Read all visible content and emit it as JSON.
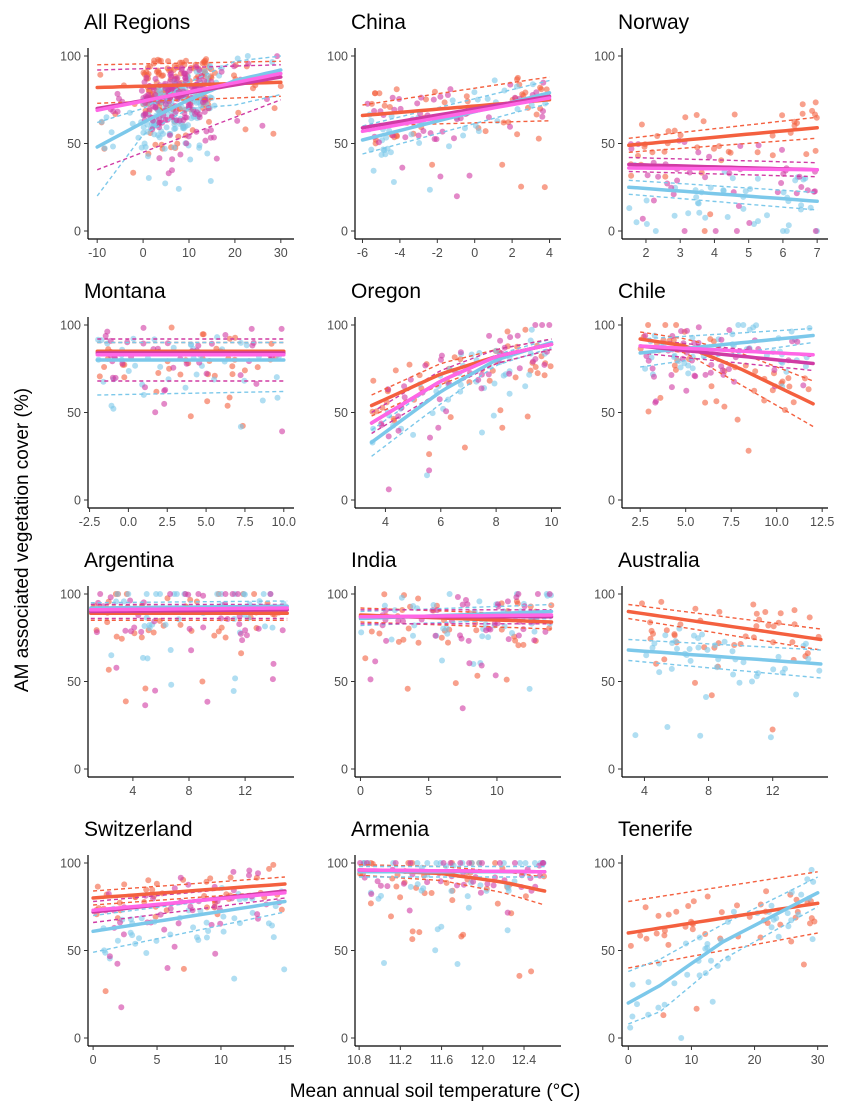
{
  "figure": {
    "xlabel": "Mean annual soil temperature (°C)",
    "ylabel": "AM associated vegetation cover (%)"
  },
  "colors": {
    "red": "#f4603f",
    "blue": "#7cc8ea",
    "magenta": "#d03ba4",
    "pink": "#ff66e6"
  },
  "chart_data": [
    {
      "type": "scatter",
      "title": "All Regions",
      "xlim": [
        -12,
        32
      ],
      "ylim": [
        0,
        100
      ],
      "xticks": [
        -10,
        0,
        10,
        20,
        30
      ],
      "xtick_labels": [
        "-10",
        "0",
        "10",
        "20",
        "30"
      ],
      "yticks": [
        0,
        50,
        100
      ],
      "trends": [
        {
          "color": "red",
          "x": [
            -10,
            30
          ],
          "y": [
            82,
            85
          ],
          "ci": [
            [
              73,
              77
            ],
            [
              95,
              97
            ]
          ]
        },
        {
          "color": "blue",
          "x": [
            -10,
            0,
            10,
            20,
            30
          ],
          "y": [
            48,
            62,
            75,
            86,
            92
          ],
          "ci": [
            [
              20,
              55,
              70,
              72,
              78
            ],
            [
              62,
              70,
              85,
              97,
              100
            ]
          ]
        },
        {
          "color": "magenta",
          "x": [
            -10,
            30
          ],
          "y": [
            70,
            88
          ],
          "ci": [
            [
              35,
              75
            ],
            [
              92,
              95
            ]
          ]
        },
        {
          "color": "pink",
          "x": [
            -10,
            30
          ],
          "y": [
            69,
            90
          ]
        }
      ]
    },
    {
      "type": "scatter",
      "title": "China",
      "xlim": [
        -6.4,
        4.4
      ],
      "ylim": [
        0,
        100
      ],
      "xticks": [
        -6,
        -4,
        -2,
        0,
        2,
        4
      ],
      "xtick_labels": [
        "-6",
        "-4",
        "-2",
        "0",
        "2",
        "4"
      ],
      "yticks": [
        0,
        50,
        100
      ],
      "trends": [
        {
          "color": "red",
          "x": [
            -6,
            4
          ],
          "y": [
            66,
            75
          ],
          "ci": [
            [
              60,
              63
            ],
            [
              72,
              88
            ]
          ]
        },
        {
          "color": "blue",
          "x": [
            -6,
            4
          ],
          "y": [
            52,
            79
          ],
          "ci": [
            [
              44,
              73
            ],
            [
              60,
              86
            ]
          ]
        },
        {
          "color": "magenta",
          "x": [
            -6,
            4
          ],
          "y": [
            59,
            77
          ]
        },
        {
          "color": "pink",
          "x": [
            -6,
            4
          ],
          "y": [
            57,
            76
          ]
        }
      ]
    },
    {
      "type": "scatter",
      "title": "Norway",
      "xlim": [
        1.3,
        7.2
      ],
      "ylim": [
        0,
        100
      ],
      "xticks": [
        2,
        3,
        4,
        5,
        6,
        7
      ],
      "xtick_labels": [
        "2",
        "3",
        "4",
        "5",
        "6",
        "7"
      ],
      "yticks": [
        0,
        50,
        100
      ],
      "trends": [
        {
          "color": "red",
          "x": [
            1.5,
            7
          ],
          "y": [
            49,
            59
          ],
          "ci": [
            [
              45,
              53
            ],
            [
              53,
              65
            ]
          ]
        },
        {
          "color": "blue",
          "x": [
            1.5,
            7
          ],
          "y": [
            25,
            17
          ],
          "ci": [
            [
              21,
              12
            ],
            [
              29,
              22
            ]
          ]
        },
        {
          "color": "magenta",
          "x": [
            1.5,
            7
          ],
          "y": [
            38,
            35
          ],
          "ci": [
            [
              34,
              31
            ],
            [
              42,
              39
            ]
          ]
        },
        {
          "color": "pink",
          "x": [
            1.5,
            7
          ],
          "y": [
            36,
            35
          ]
        }
      ]
    },
    {
      "type": "scatter",
      "title": "Montana",
      "xlim": [
        -2.6,
        10.4
      ],
      "ylim": [
        0,
        100
      ],
      "xticks": [
        -2.5,
        0,
        2.5,
        5,
        7.5,
        10
      ],
      "xtick_labels": [
        "-2.5",
        "0.0",
        "2.5",
        "5.0",
        "7.5",
        "10.0"
      ],
      "yticks": [
        0,
        50,
        100
      ],
      "trends": [
        {
          "color": "red",
          "x": [
            -2,
            10
          ],
          "y": [
            85,
            85
          ],
          "ci": [
            [
              80,
              80
            ],
            [
              90,
              90
            ]
          ]
        },
        {
          "color": "blue",
          "x": [
            -2,
            10
          ],
          "y": [
            80,
            80
          ],
          "ci": [
            [
              60,
              62
            ],
            [
              90,
              90
            ]
          ]
        },
        {
          "color": "magenta",
          "x": [
            -2,
            10
          ],
          "y": [
            84,
            84
          ],
          "ci": [
            [
              68,
              68
            ],
            [
              92,
              92
            ]
          ]
        },
        {
          "color": "pink",
          "x": [
            -2,
            10
          ],
          "y": [
            83,
            83
          ]
        }
      ]
    },
    {
      "type": "scatter",
      "title": "Oregon",
      "xlim": [
        2.9,
        10.2
      ],
      "ylim": [
        0,
        100
      ],
      "xticks": [
        4,
        6,
        8,
        10
      ],
      "xtick_labels": [
        "4",
        "6",
        "8",
        "10"
      ],
      "yticks": [
        0,
        50,
        100
      ],
      "trends": [
        {
          "color": "red",
          "x": [
            3.5,
            6,
            8,
            10
          ],
          "y": [
            54,
            72,
            82,
            89
          ],
          "ci": [
            [
              48,
              66,
              78,
              86
            ],
            [
              60,
              78,
              86,
              92
            ]
          ]
        },
        {
          "color": "blue",
          "x": [
            3.5,
            6,
            8,
            10
          ],
          "y": [
            33,
            62,
            80,
            90
          ],
          "ci": [
            [
              25,
              55,
              77,
              87
            ],
            [
              40,
              68,
              83,
              92
            ]
          ]
        },
        {
          "color": "magenta",
          "x": [
            3.5,
            6,
            8,
            10
          ],
          "y": [
            44,
            68,
            82,
            89
          ],
          "ci": [
            [
              38,
              62,
              78,
              86
            ],
            [
              50,
              74,
              86,
              92
            ]
          ]
        },
        {
          "color": "pink",
          "x": [
            3.5,
            6,
            8,
            10
          ],
          "y": [
            44,
            68,
            82,
            89
          ]
        }
      ]
    },
    {
      "type": "scatter",
      "title": "Chile",
      "xlim": [
        1.5,
        12.6
      ],
      "ylim": [
        0,
        100
      ],
      "xticks": [
        2.5,
        5,
        7.5,
        10,
        12.5
      ],
      "xtick_labels": [
        "2.5",
        "5.0",
        "7.5",
        "10.0",
        "12.5"
      ],
      "yticks": [
        0,
        50,
        100
      ],
      "trends": [
        {
          "color": "red",
          "x": [
            2.5,
            5,
            8,
            12
          ],
          "y": [
            92,
            88,
            75,
            55
          ],
          "ci": [
            [
              88,
              84,
              66,
              42
            ],
            [
              96,
              92,
              84,
              68
            ]
          ]
        },
        {
          "color": "blue",
          "x": [
            2.5,
            12
          ],
          "y": [
            84,
            94
          ],
          "ci": [
            [
              76,
              90
            ],
            [
              92,
              98
            ]
          ]
        },
        {
          "color": "magenta",
          "x": [
            2.5,
            12
          ],
          "y": [
            88,
            78
          ],
          "ci": [
            [
              84,
              74
            ],
            [
              92,
              82
            ]
          ]
        },
        {
          "color": "pink",
          "x": [
            2.5,
            12
          ],
          "y": [
            88,
            83
          ]
        }
      ]
    },
    {
      "type": "scatter",
      "title": "Argentina",
      "xlim": [
        0.8,
        15.2
      ],
      "ylim": [
        0,
        100
      ],
      "xticks": [
        4,
        8,
        12
      ],
      "xtick_labels": [
        "4",
        "8",
        "12"
      ],
      "yticks": [
        0,
        50,
        100
      ],
      "trends": [
        {
          "color": "red",
          "x": [
            1,
            15
          ],
          "y": [
            89,
            89
          ],
          "ci": [
            [
              85,
              85
            ],
            [
              93,
              93
            ]
          ]
        },
        {
          "color": "blue",
          "x": [
            1,
            15
          ],
          "y": [
            92,
            93
          ],
          "ci": [
            [
              89,
              89
            ],
            [
              95,
              96
            ]
          ]
        },
        {
          "color": "magenta",
          "x": [
            1,
            15
          ],
          "y": [
            90,
            91
          ],
          "ci": [
            [
              86,
              86
            ],
            [
              94,
              94
            ]
          ]
        },
        {
          "color": "pink",
          "x": [
            1,
            15
          ],
          "y": [
            91,
            92
          ]
        }
      ]
    },
    {
      "type": "scatter",
      "title": "India",
      "xlim": [
        -0.4,
        14.4
      ],
      "ylim": [
        0,
        100
      ],
      "xticks": [
        0,
        5,
        10
      ],
      "xtick_labels": [
        "0",
        "5",
        "10"
      ],
      "yticks": [
        0,
        50,
        100
      ],
      "trends": [
        {
          "color": "red",
          "x": [
            0,
            14
          ],
          "y": [
            88,
            84
          ],
          "ci": [
            [
              84,
              80
            ],
            [
              92,
              88
            ]
          ]
        },
        {
          "color": "blue",
          "x": [
            0,
            14
          ],
          "y": [
            86,
            90
          ],
          "ci": [
            [
              82,
              86
            ],
            [
              90,
              94
            ]
          ]
        },
        {
          "color": "magenta",
          "x": [
            0,
            14
          ],
          "y": [
            87,
            87
          ],
          "ci": [
            [
              83,
              83
            ],
            [
              91,
              91
            ]
          ]
        },
        {
          "color": "pink",
          "x": [
            0,
            14
          ],
          "y": [
            87,
            88
          ]
        }
      ]
    },
    {
      "type": "scatter",
      "title": "Australia",
      "xlim": [
        2.6,
        15.2
      ],
      "ylim": [
        0,
        100
      ],
      "xticks": [
        4,
        8,
        12
      ],
      "xtick_labels": [
        "4",
        "8",
        "12"
      ],
      "yticks": [
        0,
        50,
        100
      ],
      "trends": [
        {
          "color": "red",
          "x": [
            3,
            15
          ],
          "y": [
            90,
            74
          ],
          "ci": [
            [
              86,
              68
            ],
            [
              94,
              80
            ]
          ]
        },
        {
          "color": "blue",
          "x": [
            3,
            15
          ],
          "y": [
            68,
            60
          ],
          "ci": [
            [
              62,
              52
            ],
            [
              74,
              68
            ]
          ]
        }
      ]
    },
    {
      "type": "scatter",
      "title": "Switzerland",
      "xlim": [
        -0.4,
        15.4
      ],
      "ylim": [
        0,
        100
      ],
      "xticks": [
        0,
        5,
        10,
        15
      ],
      "xtick_labels": [
        "0",
        "5",
        "10",
        "15"
      ],
      "yticks": [
        0,
        50,
        100
      ],
      "trends": [
        {
          "color": "red",
          "x": [
            0,
            15
          ],
          "y": [
            80,
            88
          ],
          "ci": [
            [
              76,
              84
            ],
            [
              84,
              92
            ]
          ]
        },
        {
          "color": "blue",
          "x": [
            0,
            15
          ],
          "y": [
            61,
            78
          ],
          "ci": [
            [
              49,
              72
            ],
            [
              70,
              84
            ]
          ]
        },
        {
          "color": "magenta",
          "x": [
            0,
            15
          ],
          "y": [
            72,
            84
          ],
          "ci": [
            [
              66,
              80
            ],
            [
              78,
              88
            ]
          ]
        },
        {
          "color": "pink",
          "x": [
            0,
            15
          ],
          "y": [
            73,
            83
          ]
        }
      ]
    },
    {
      "type": "scatter",
      "title": "Armenia",
      "xlim": [
        10.76,
        12.72
      ],
      "ylim": [
        0,
        100
      ],
      "xticks": [
        10.8,
        11.2,
        11.6,
        12.0,
        12.4
      ],
      "xtick_labels": [
        "10.8",
        "11.2",
        "11.6",
        "12.0",
        "12.4"
      ],
      "yticks": [
        0,
        50,
        100
      ],
      "trends": [
        {
          "color": "red",
          "x": [
            10.8,
            11.6,
            12.2,
            12.6
          ],
          "y": [
            96,
            94,
            89,
            84
          ],
          "ci": [
            [
              93,
              90,
              83,
              76
            ],
            [
              99,
              98,
              95,
              92
            ]
          ]
        },
        {
          "color": "blue",
          "x": [
            10.8,
            12.6
          ],
          "y": [
            95,
            95
          ],
          "ci": [
            [
              92,
              92
            ],
            [
              98,
              98
            ]
          ]
        },
        {
          "color": "magenta",
          "x": [
            10.8,
            12.6
          ],
          "y": [
            96,
            95
          ]
        },
        {
          "color": "pink",
          "x": [
            10.8,
            12.6
          ],
          "y": [
            96,
            95
          ]
        }
      ]
    },
    {
      "type": "scatter",
      "title": "Tenerife",
      "xlim": [
        -1,
        31
      ],
      "ylim": [
        0,
        100
      ],
      "xticks": [
        0,
        10,
        20,
        30
      ],
      "xtick_labels": [
        "0",
        "10",
        "20",
        "30"
      ],
      "yticks": [
        0,
        50,
        100
      ],
      "trends": [
        {
          "color": "red",
          "x": [
            0,
            30
          ],
          "y": [
            60,
            77
          ],
          "ci": [
            [
              40,
              60
            ],
            [
              78,
              95
            ]
          ]
        },
        {
          "color": "blue",
          "x": [
            0,
            5,
            15,
            30
          ],
          "y": [
            20,
            30,
            55,
            83
          ],
          "ci": [
            [
              8,
              15,
              45,
              75
            ],
            [
              38,
              45,
              65,
              92
            ]
          ]
        }
      ]
    }
  ]
}
